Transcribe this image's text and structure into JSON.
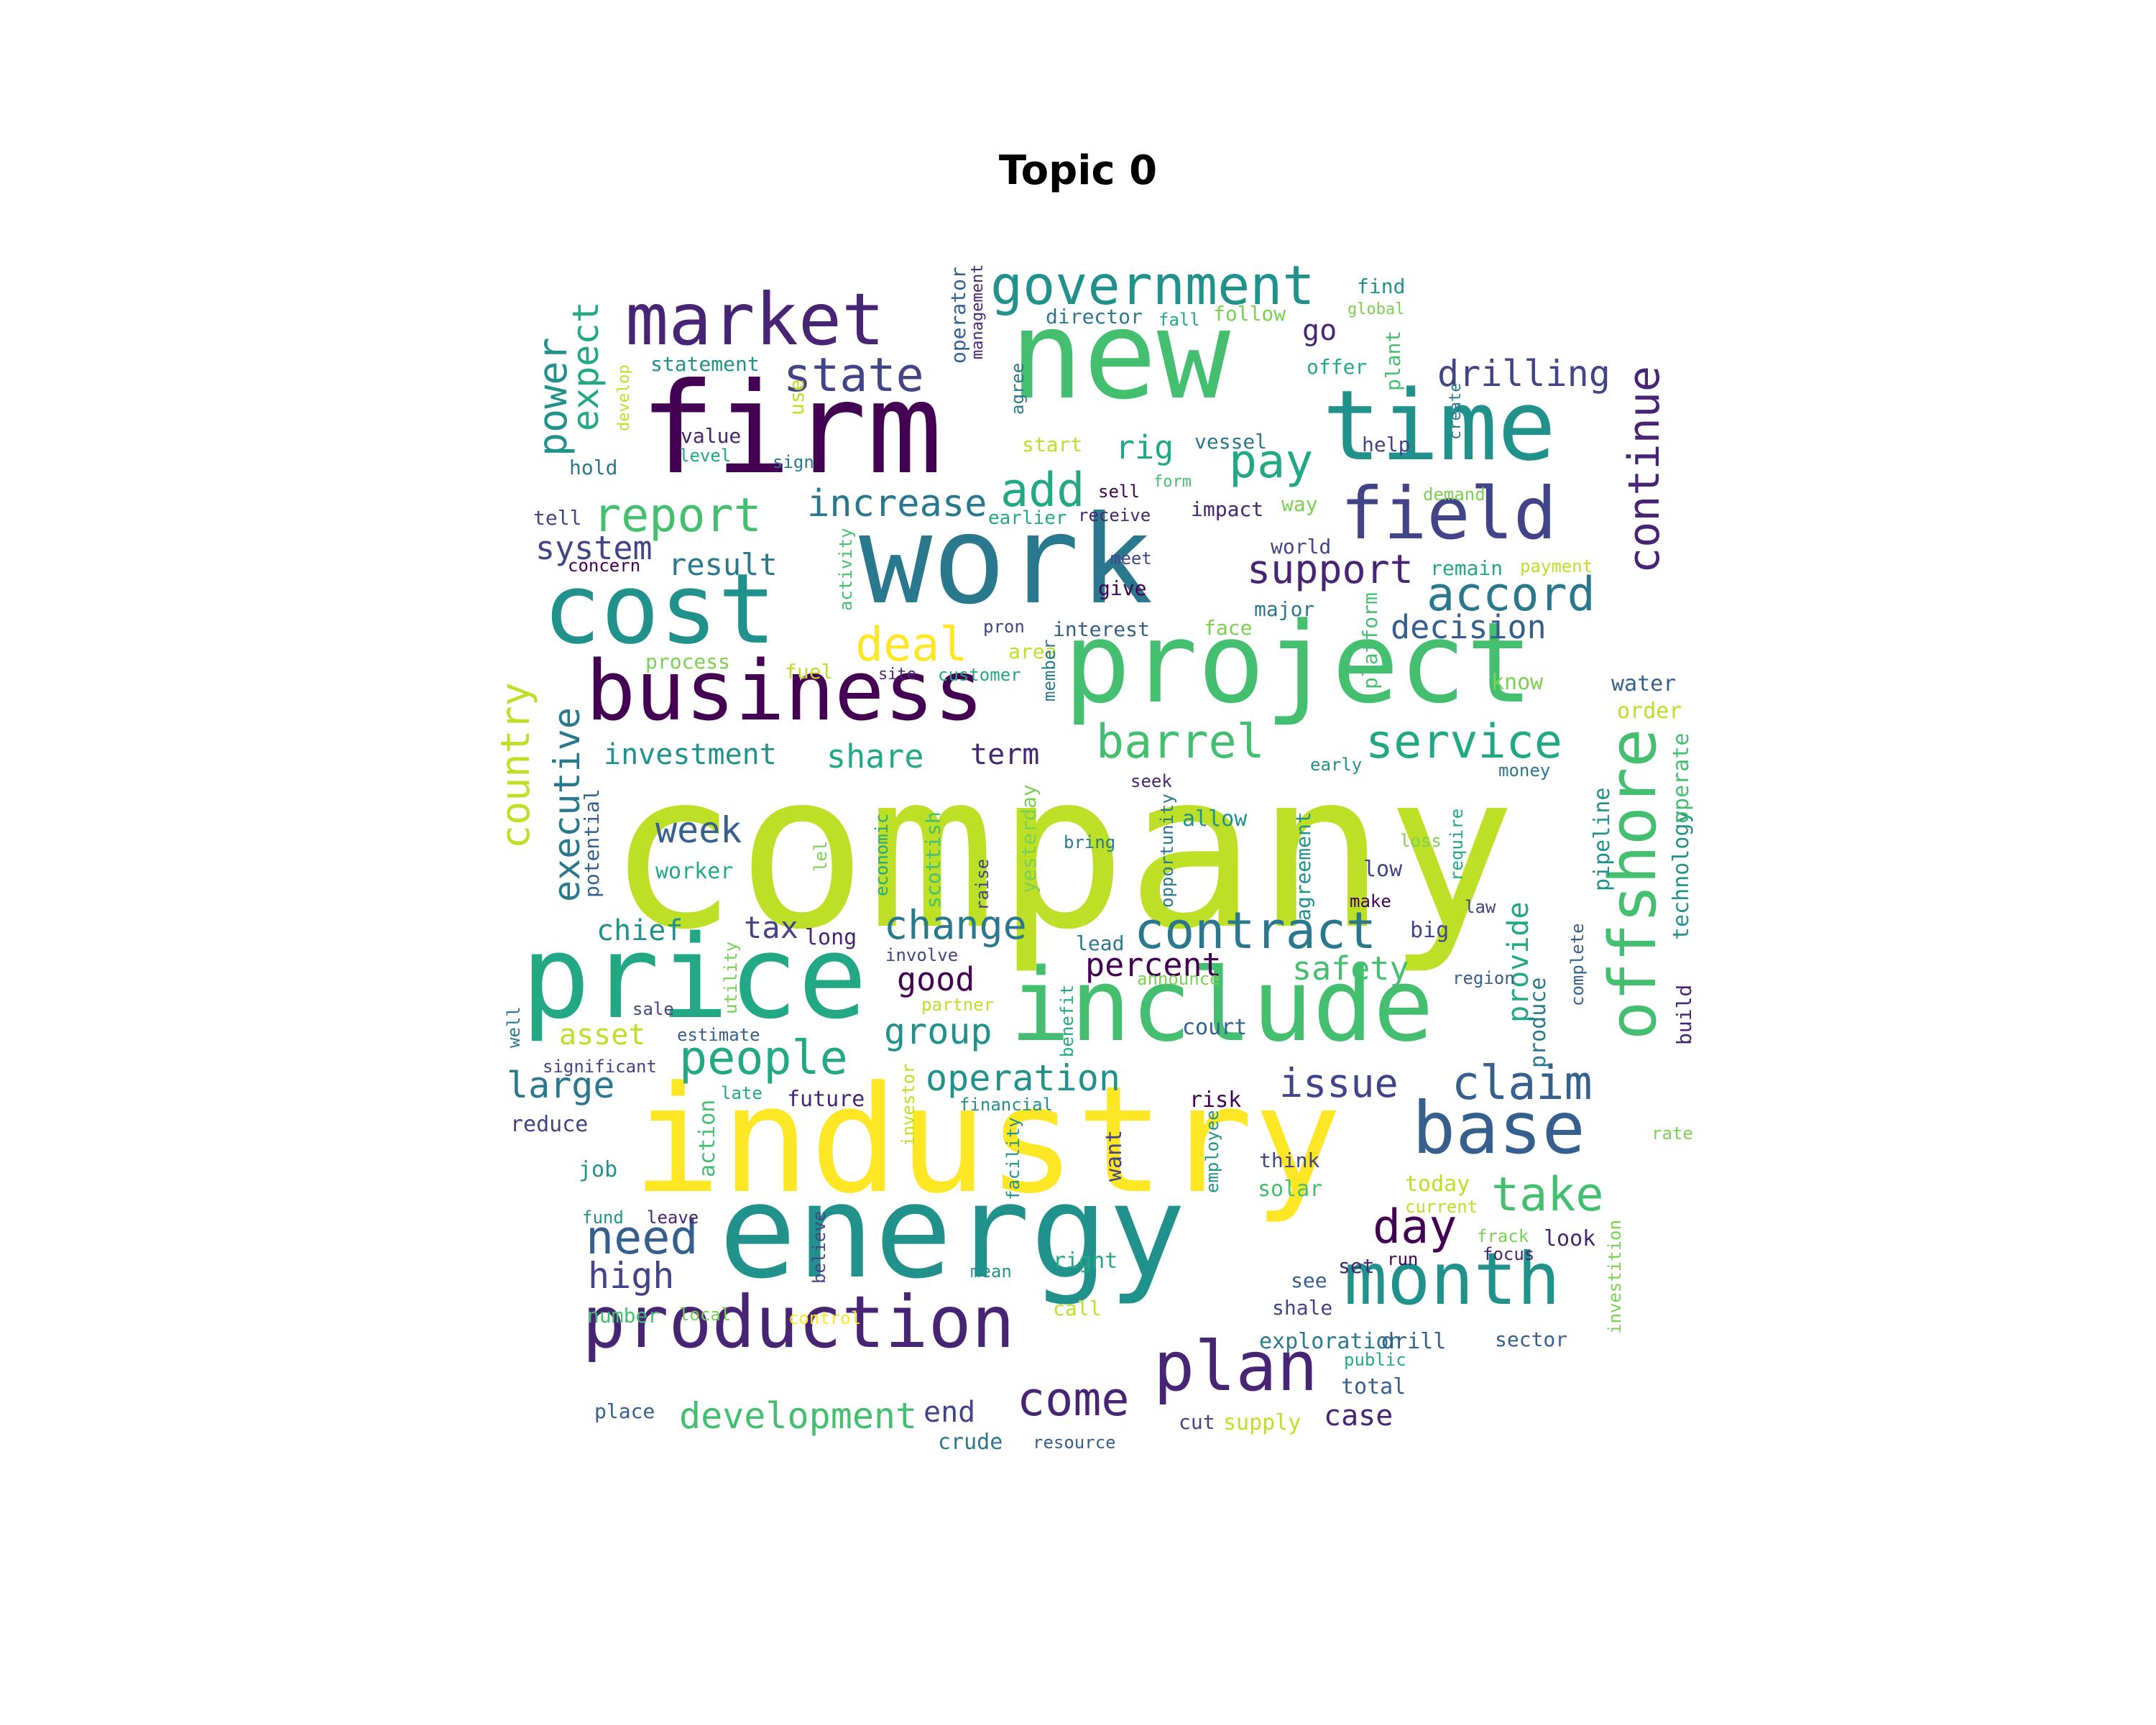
{
  "title": "Topic 0",
  "palette": [
    "#440154",
    "#482475",
    "#414487",
    "#355f8d",
    "#2a788e",
    "#21918c",
    "#22a884",
    "#44bf70",
    "#7ad151",
    "#bddf26",
    "#fde725"
  ],
  "words": [
    {
      "text": "company",
      "c": 9
    },
    {
      "text": "industry",
      "c": 10
    },
    {
      "text": "work",
      "c": 4
    },
    {
      "text": "new",
      "c": 7
    },
    {
      "text": "energy",
      "c": 5
    },
    {
      "text": "project",
      "c": 7
    },
    {
      "text": "firm",
      "c": 0
    },
    {
      "text": "price",
      "c": 6
    },
    {
      "text": "include",
      "c": 7
    },
    {
      "text": "time",
      "c": 5
    },
    {
      "text": "cost",
      "c": 5
    },
    {
      "text": "business",
      "c": 0
    },
    {
      "text": "production",
      "c": 1
    },
    {
      "text": "market",
      "c": 1
    },
    {
      "text": "plan",
      "c": 1
    },
    {
      "text": "field",
      "c": 2
    },
    {
      "text": "month",
      "c": 5
    },
    {
      "text": "offshore",
      "c": 7
    },
    {
      "text": "base",
      "c": 3
    },
    {
      "text": "government",
      "c": 5
    },
    {
      "text": "contract",
      "c": 4
    },
    {
      "text": "continue",
      "c": 1
    },
    {
      "text": "barrel",
      "c": 7
    },
    {
      "text": "state",
      "c": 2
    },
    {
      "text": "service",
      "c": 6
    },
    {
      "text": "country",
      "c": 9
    },
    {
      "text": "people",
      "c": 6
    },
    {
      "text": "report",
      "c": 7
    },
    {
      "text": "claim",
      "c": 3
    },
    {
      "text": "deal",
      "c": 10
    },
    {
      "text": "accord",
      "c": 4
    },
    {
      "text": "pay",
      "c": 6
    },
    {
      "text": "add",
      "c": 6
    },
    {
      "text": "come",
      "c": 1
    },
    {
      "text": "executive",
      "c": 4
    },
    {
      "text": "power",
      "c": 5
    },
    {
      "text": "take",
      "c": 7
    },
    {
      "text": "increase",
      "c": 4
    },
    {
      "text": "need",
      "c": 3
    },
    {
      "text": "day",
      "c": 0
    },
    {
      "text": "change",
      "c": 4
    },
    {
      "text": "issue",
      "c": 2
    },
    {
      "text": "support",
      "c": 1
    },
    {
      "text": "drilling",
      "c": 2
    },
    {
      "text": "expect",
      "c": 6
    },
    {
      "text": "development",
      "c": 7
    },
    {
      "text": "operation",
      "c": 5
    },
    {
      "text": "week",
      "c": 3
    },
    {
      "text": "share",
      "c": 6
    },
    {
      "text": "investment",
      "c": 5
    },
    {
      "text": "group",
      "c": 5
    },
    {
      "text": "high",
      "c": 2
    },
    {
      "text": "large",
      "c": 4
    },
    {
      "text": "provide",
      "c": 6
    },
    {
      "text": "decision",
      "c": 3
    },
    {
      "text": "good",
      "c": 0
    },
    {
      "text": "percent",
      "c": 0
    },
    {
      "text": "safety",
      "c": 7
    },
    {
      "text": "rig",
      "c": 6
    },
    {
      "text": "system",
      "c": 2
    },
    {
      "text": "result",
      "c": 4
    },
    {
      "text": "tax",
      "c": 2
    },
    {
      "text": "chief",
      "c": 5
    },
    {
      "text": "term",
      "c": 1
    },
    {
      "text": "case",
      "c": 1
    },
    {
      "text": "end",
      "c": 2
    },
    {
      "text": "go",
      "c": 1
    },
    {
      "text": "asset",
      "c": 9
    },
    {
      "text": "statement",
      "c": 5
    },
    {
      "text": "director",
      "c": 4
    },
    {
      "text": "follow",
      "c": 8
    },
    {
      "text": "find",
      "c": 5
    },
    {
      "text": "fall",
      "c": 6
    },
    {
      "text": "global",
      "c": 8
    },
    {
      "text": "offer",
      "c": 6
    },
    {
      "text": "plant",
      "c": 7
    },
    {
      "text": "operator",
      "c": 3
    },
    {
      "text": "management",
      "c": 1
    },
    {
      "text": "agree",
      "c": 4
    },
    {
      "text": "create",
      "c": 4
    },
    {
      "text": "develop",
      "c": 9
    },
    {
      "text": "use",
      "c": 9
    },
    {
      "text": "value",
      "c": 1
    },
    {
      "text": "level",
      "c": 6
    },
    {
      "text": "sign",
      "c": 4
    },
    {
      "text": "hold",
      "c": 4
    },
    {
      "text": "start",
      "c": 9
    },
    {
      "text": "vessel",
      "c": 4
    },
    {
      "text": "help",
      "c": 2
    },
    {
      "text": "form",
      "c": 7
    },
    {
      "text": "sell",
      "c": 0
    },
    {
      "text": "demand",
      "c": 8
    },
    {
      "text": "tell",
      "c": 2
    },
    {
      "text": "earlier",
      "c": 6
    },
    {
      "text": "receive",
      "c": 1
    },
    {
      "text": "impact",
      "c": 1
    },
    {
      "text": "way",
      "c": 8
    },
    {
      "text": "concern",
      "c": 0
    },
    {
      "text": "world",
      "c": 2
    },
    {
      "text": "remain",
      "c": 6
    },
    {
      "text": "payment",
      "c": 9
    },
    {
      "text": "activity",
      "c": 7
    },
    {
      "text": "meet",
      "c": 2
    },
    {
      "text": "give",
      "c": 0
    },
    {
      "text": "major",
      "c": 4
    },
    {
      "text": "pron",
      "c": 2
    },
    {
      "text": "interest",
      "c": 3
    },
    {
      "text": "face",
      "c": 8
    },
    {
      "text": "platform",
      "c": 7
    },
    {
      "text": "process",
      "c": 8
    },
    {
      "text": "area",
      "c": 9
    },
    {
      "text": "fuel",
      "c": 9
    },
    {
      "text": "site",
      "c": 1
    },
    {
      "text": "customer",
      "c": 6
    },
    {
      "text": "know",
      "c": 8
    },
    {
      "text": "water",
      "c": 3
    },
    {
      "text": "member",
      "c": 4
    },
    {
      "text": "order",
      "c": 9
    },
    {
      "text": "early",
      "c": 5
    },
    {
      "text": "money",
      "c": 4
    },
    {
      "text": "seek",
      "c": 1
    },
    {
      "text": "potential",
      "c": 3
    },
    {
      "text": "economic",
      "c": 6
    },
    {
      "text": "scottish",
      "c": 7
    },
    {
      "text": "lel",
      "c": 8
    },
    {
      "text": "raise",
      "c": 2
    },
    {
      "text": "yesterday",
      "c": 8
    },
    {
      "text": "bring",
      "c": 4
    },
    {
      "text": "opportunity",
      "c": 4
    },
    {
      "text": "allow",
      "c": 5
    },
    {
      "text": "agreement",
      "c": 5
    },
    {
      "text": "loss",
      "c": 8
    },
    {
      "text": "require",
      "c": 6
    },
    {
      "text": "pipeline",
      "c": 5
    },
    {
      "text": "technology",
      "c": 5
    },
    {
      "text": "operate",
      "c": 7
    },
    {
      "text": "worker",
      "c": 6
    },
    {
      "text": "low",
      "c": 2
    },
    {
      "text": "make",
      "c": 0
    },
    {
      "text": "law",
      "c": 2
    },
    {
      "text": "long",
      "c": 1
    },
    {
      "text": "big",
      "c": 2
    },
    {
      "text": "lead",
      "c": 4
    },
    {
      "text": "involve",
      "c": 2
    },
    {
      "text": "announce",
      "c": 8
    },
    {
      "text": "complete",
      "c": 3
    },
    {
      "text": "region",
      "c": 3
    },
    {
      "text": "sale",
      "c": 2
    },
    {
      "text": "partner",
      "c": 9
    },
    {
      "text": "utility",
      "c": 8
    },
    {
      "text": "benefit",
      "c": 6
    },
    {
      "text": "court",
      "c": 3
    },
    {
      "text": "produce",
      "c": 4
    },
    {
      "text": "build",
      "c": 1
    },
    {
      "text": "well",
      "c": 4
    },
    {
      "text": "estimate",
      "c": 3
    },
    {
      "text": "significant",
      "c": 2
    },
    {
      "text": "late",
      "c": 6
    },
    {
      "text": "investor",
      "c": 9
    },
    {
      "text": "risk",
      "c": 0
    },
    {
      "text": "reduce",
      "c": 2
    },
    {
      "text": "future",
      "c": 1
    },
    {
      "text": "financial",
      "c": 5
    },
    {
      "text": "action",
      "c": 7
    },
    {
      "text": "employee",
      "c": 5
    },
    {
      "text": "rate",
      "c": 8
    },
    {
      "text": "want",
      "c": 2
    },
    {
      "text": "think",
      "c": 2
    },
    {
      "text": "job",
      "c": 5
    },
    {
      "text": "facility",
      "c": 5
    },
    {
      "text": "solar",
      "c": 7
    },
    {
      "text": "today",
      "c": 9
    },
    {
      "text": "fund",
      "c": 5
    },
    {
      "text": "leave",
      "c": 1
    },
    {
      "text": "current",
      "c": 9
    },
    {
      "text": "believe",
      "c": 2
    },
    {
      "text": "frack",
      "c": 8
    },
    {
      "text": "focus",
      "c": 1
    },
    {
      "text": "right",
      "c": 6
    },
    {
      "text": "set",
      "c": 1
    },
    {
      "text": "run",
      "c": 0
    },
    {
      "text": "mean",
      "c": 5
    },
    {
      "text": "see",
      "c": 3
    },
    {
      "text": "investition",
      "c": 8
    },
    {
      "text": "number",
      "c": 7
    },
    {
      "text": "local",
      "c": 8
    },
    {
      "text": "control",
      "c": 10
    },
    {
      "text": "call",
      "c": 9
    },
    {
      "text": "shale",
      "c": 2
    },
    {
      "text": "exploration",
      "c": 4
    },
    {
      "text": "drill",
      "c": 3
    },
    {
      "text": "sector",
      "c": 3
    },
    {
      "text": "public",
      "c": 6
    },
    {
      "text": "total",
      "c": 3
    },
    {
      "text": "place",
      "c": 3
    },
    {
      "text": "supply",
      "c": 9
    },
    {
      "text": "cut",
      "c": 2
    },
    {
      "text": "crude",
      "c": 4
    },
    {
      "text": "resource",
      "c": 3
    },
    {
      "text": "look",
      "c": 1
    }
  ]
}
